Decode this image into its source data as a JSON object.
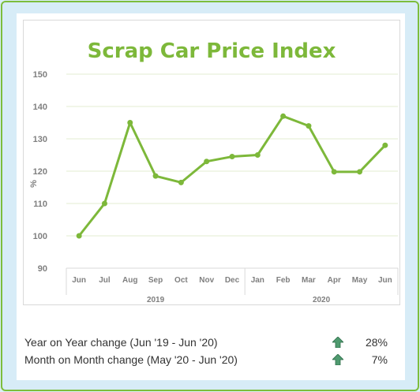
{
  "chart_data": {
    "type": "line",
    "title": "Scrap Car Price Index",
    "ylabel": "%",
    "xlabel": "",
    "ylim": [
      90,
      150
    ],
    "yticks": [
      90,
      100,
      110,
      120,
      130,
      140,
      150
    ],
    "grid": true,
    "categories": [
      "Jun",
      "Jul",
      "Aug",
      "Sep",
      "Oct",
      "Nov",
      "Dec",
      "Jan",
      "Feb",
      "Mar",
      "Apr",
      "May",
      "Jun"
    ],
    "groups": [
      {
        "label": "2019",
        "count": 7
      },
      {
        "label": "2020",
        "count": 6
      }
    ],
    "series": [
      {
        "values": [
          100,
          110,
          135,
          118.5,
          116.5,
          123,
          124.5,
          125,
          137,
          134,
          119.8,
          119.8,
          128
        ],
        "color": "#7db83a"
      }
    ]
  },
  "stats": [
    {
      "label": "Year on Year change (Jun '19 - Jun '20)",
      "value": "28%",
      "icon": "up-arrow-icon"
    },
    {
      "label": "Month on Month change (May '20 - Jun '20)",
      "value": "7%",
      "icon": "up-arrow-icon"
    }
  ],
  "colors": {
    "accent": "#7db83a",
    "frame": "#7dbd3c",
    "arrow": "#4f9a6f"
  }
}
